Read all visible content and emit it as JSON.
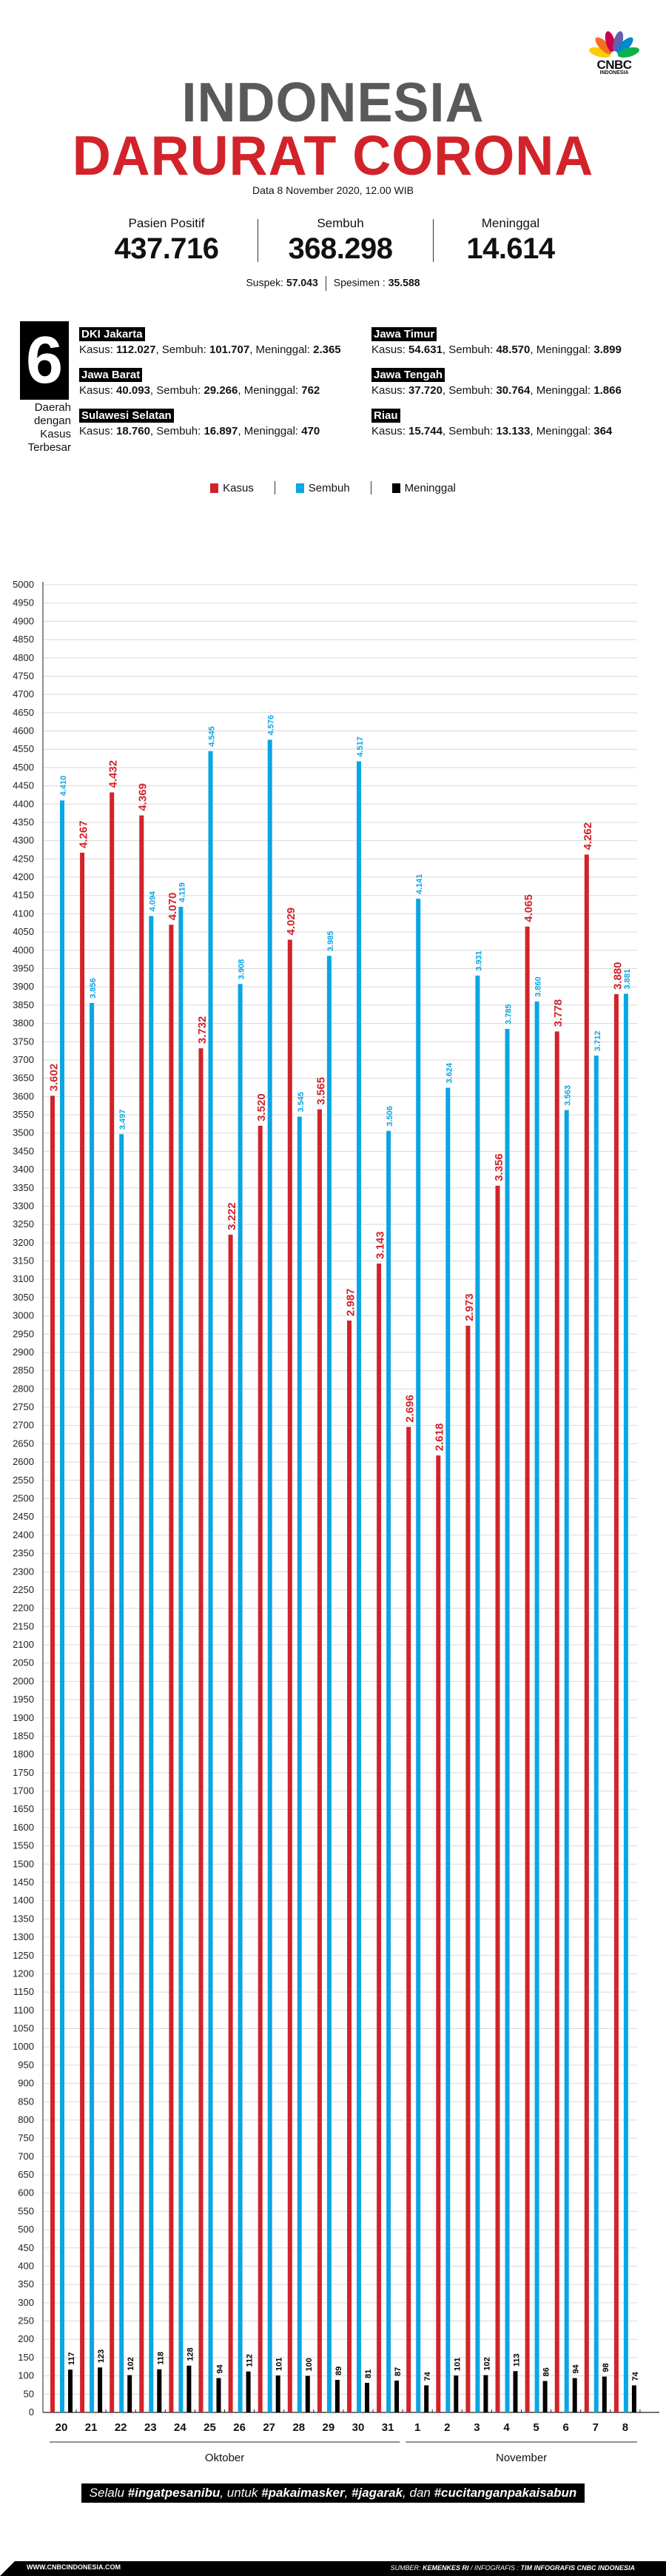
{
  "brand": {
    "logo_main": "CNBC",
    "logo_sub": "INDONESIA",
    "peacock_colors": [
      "#fccc0a",
      "#f37021",
      "#cc004c",
      "#6460aa",
      "#0089d0",
      "#0db14b"
    ]
  },
  "header": {
    "title_line1": "INDONESIA",
    "title_line2": "DARURAT CORONA",
    "date": "Data 8 November 2020, 12.00 WIB"
  },
  "totals": [
    {
      "label": "Pasien Positif",
      "value": "437.716"
    },
    {
      "label": "Sembuh",
      "value": "368.298"
    },
    {
      "label": "Meninggal",
      "value": "14.614"
    }
  ],
  "secondary": {
    "suspek_label": "Suspek: ",
    "suspek_value": "57.043",
    "spesimen_label": "Spesimen : ",
    "spesimen_value": "35.588"
  },
  "regions_box": {
    "count": "6",
    "caption": [
      "Daerah",
      "dengan",
      "Kasus",
      "Terbesar"
    ]
  },
  "regions": [
    {
      "name": "DKI Jakarta",
      "kasus": "112.027",
      "sembuh": "101.707",
      "meninggal": "2.365"
    },
    {
      "name": "Jawa Timur",
      "kasus": "54.631",
      "sembuh": "48.570",
      "meninggal": "3.899"
    },
    {
      "name": "Jawa Barat",
      "kasus": "40.093",
      "sembuh": "29.266",
      "meninggal": "762"
    },
    {
      "name": "Jawa Tengah",
      "kasus": "37.720",
      "sembuh": "30.764",
      "meninggal": "1.866"
    },
    {
      "name": "Sulawesi Selatan",
      "kasus": "18.760",
      "sembuh": "16.897",
      "meninggal": "470"
    },
    {
      "name": "Riau",
      "kasus": "15.744",
      "sembuh": "13.133",
      "meninggal": "364"
    }
  ],
  "region_labels": {
    "kasus": "Kasus: ",
    "sembuh": ", Sembuh: ",
    "meninggal": ", Meninggal: "
  },
  "chart_data": {
    "type": "bar",
    "title": "",
    "xlabel": "",
    "ylabel": "",
    "ylim": [
      0,
      5000
    ],
    "ytick_step": 50,
    "grid": true,
    "legend_position": "top-center",
    "categories": [
      "20",
      "21",
      "22",
      "23",
      "24",
      "25",
      "26",
      "27",
      "28",
      "29",
      "30",
      "31",
      "1",
      "2",
      "3",
      "4",
      "5",
      "6",
      "7",
      "8"
    ],
    "month_groups": [
      {
        "label": "Oktober",
        "from": 0,
        "to": 11
      },
      {
        "label": "November",
        "from": 12,
        "to": 19
      }
    ],
    "series": [
      {
        "name": "Kasus",
        "color": "#d2232a",
        "values": [
          3602,
          4267,
          4432,
          4369,
          4070,
          3732,
          3222,
          3520,
          4029,
          3565,
          2987,
          3143,
          2696,
          2618,
          2973,
          3356,
          4065,
          3778,
          4262,
          3880
        ],
        "labels": [
          "3.602",
          "4.267",
          "4.432",
          "4.369",
          "4.070",
          "3.732",
          "3.222",
          "3.520",
          "4.029",
          "3.565",
          "2.987",
          "3.143",
          "2.696",
          "2.618",
          "2.973",
          "3.356",
          "4.065",
          "3.778",
          "4.262",
          "3.880"
        ]
      },
      {
        "name": "Sembuh",
        "color": "#0aa6e4",
        "values": [
          4410,
          3856,
          3497,
          4094,
          4119,
          4545,
          3908,
          4576,
          3545,
          3985,
          4517,
          3506,
          4141,
          3624,
          3931,
          3785,
          3860,
          3563,
          3712,
          3881
        ],
        "labels": [
          "4.410",
          "3.856",
          "3.497",
          "4.094",
          "4.119",
          "4.545",
          "3.908",
          "4.576",
          "3.545",
          "3.985",
          "4.517",
          "3.506",
          "4.141",
          "3.624",
          "3.931",
          "3.785",
          "3.860",
          "3.563",
          "3.712",
          "3.881"
        ]
      },
      {
        "name": "Meninggal",
        "color": "#000000",
        "values": [
          117,
          123,
          102,
          118,
          128,
          94,
          112,
          101,
          100,
          89,
          81,
          87,
          74,
          101,
          102,
          113,
          86,
          94,
          98,
          74
        ],
        "labels": [
          "117",
          "123",
          "102",
          "118",
          "128",
          "94",
          "112",
          "101",
          "100",
          "89",
          "81",
          "87",
          "74",
          "101",
          "102",
          "113",
          "86",
          "94",
          "98",
          "74"
        ]
      }
    ]
  },
  "banner": {
    "parts": [
      {
        "text": "Selalu ",
        "bold": false
      },
      {
        "text": "#ingatpesanibu",
        "bold": true
      },
      {
        "text": ", untuk ",
        "bold": false
      },
      {
        "text": "#pakaimasker",
        "bold": true
      },
      {
        "text": ", ",
        "bold": false
      },
      {
        "text": "#jagarak",
        "bold": true
      },
      {
        "text": ", dan ",
        "bold": false
      },
      {
        "text": "#cucitanganpakaisabun",
        "bold": true
      }
    ]
  },
  "footer": {
    "url": "WWW.CNBCINDONESIA.COM",
    "source_prefix": "SUMBER: ",
    "source": "KEMENKES RI",
    "infografis_prefix": " / INFOGRAFIS : ",
    "infografis": "TIM INFOGRAFIS CNBC INDONESIA"
  }
}
